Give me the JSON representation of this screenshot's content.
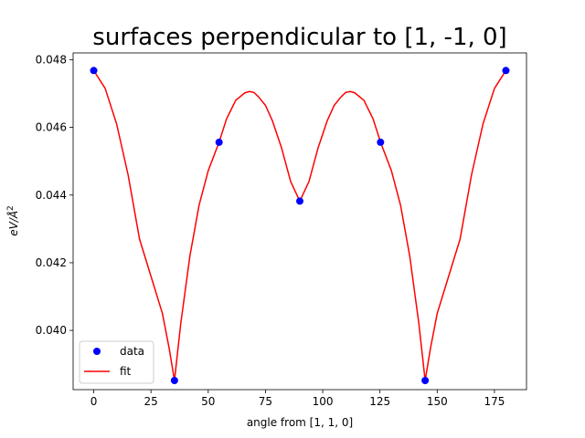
{
  "chart_data": {
    "type": "line",
    "title": "surfaces perpendicular to [1, -1, 0]",
    "xlabel": "angle from [1, 1, 0]",
    "ylabel_base": "eV/Å",
    "ylabel_sup": "2",
    "xlim": [
      -9,
      189
    ],
    "ylim": [
      0.03825,
      0.0482
    ],
    "xticks": [
      0,
      25,
      50,
      75,
      100,
      125,
      150,
      175
    ],
    "xtick_labels": [
      "0",
      "25",
      "50",
      "75",
      "100",
      "125",
      "150",
      "175"
    ],
    "yticks": [
      0.04,
      0.042,
      0.044,
      0.046,
      0.048
    ],
    "ytick_labels": [
      "0.040",
      "0.042",
      "0.044",
      "0.046",
      "0.048"
    ],
    "grid": false,
    "legend_position": "lower-left",
    "series": [
      {
        "name": "data",
        "kind": "scatter",
        "color": "#0000ff",
        "x": [
          0,
          35.26,
          54.74,
          90,
          125.26,
          144.74,
          180
        ],
        "y": [
          0.04768,
          0.03852,
          0.04556,
          0.04382,
          0.04556,
          0.03852,
          0.04768
        ]
      },
      {
        "name": "fit",
        "kind": "line",
        "color": "#ff0000",
        "x": [
          0,
          5,
          10,
          15,
          20,
          25,
          30,
          33,
          35.26,
          38,
          42,
          46,
          50,
          54.74,
          58,
          62,
          66,
          68,
          70,
          72,
          75,
          78,
          82,
          86,
          90,
          94,
          98,
          102,
          105,
          108,
          110,
          112,
          114,
          118,
          122,
          125.26,
          130,
          134,
          138,
          142,
          144.74,
          147,
          150,
          155,
          160,
          165,
          170,
          175,
          180
        ],
        "y": [
          0.04768,
          0.04715,
          0.0461,
          0.0446,
          0.0427,
          0.0416,
          0.0405,
          0.03945,
          0.03852,
          0.0402,
          0.0422,
          0.0437,
          0.04472,
          0.04556,
          0.04625,
          0.0468,
          0.04702,
          0.04706,
          0.04703,
          0.0469,
          0.04665,
          0.0462,
          0.0454,
          0.0444,
          0.04382,
          0.0444,
          0.0454,
          0.0462,
          0.04665,
          0.0469,
          0.04703,
          0.04706,
          0.04702,
          0.0468,
          0.04625,
          0.04556,
          0.04472,
          0.0437,
          0.0422,
          0.0402,
          0.03852,
          0.03945,
          0.0405,
          0.0416,
          0.0427,
          0.0446,
          0.0461,
          0.04715,
          0.04768
        ]
      }
    ],
    "legend": [
      {
        "label": "data",
        "marker": "circle",
        "color": "#0000ff"
      },
      {
        "label": "fit",
        "marker": "line",
        "color": "#ff0000"
      }
    ]
  }
}
